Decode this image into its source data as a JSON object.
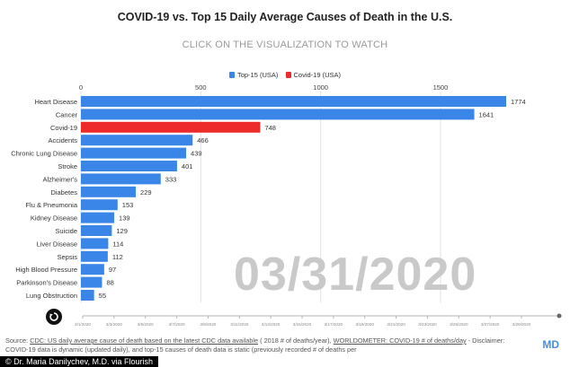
{
  "header": {
    "title": "COVID-19 vs. Top 15 Daily Average Causes of Death in the U.S.",
    "cta": "CLICK ON THE VISUALIZATION TO WATCH"
  },
  "current_date": "03/31/2020",
  "footer": {
    "source_label": "Source:",
    "source_link_1": "CDC: US daily average cause of death based on the latest CDC data available",
    "source_text_1": " ( 2018 # of deaths/year), ",
    "source_link_2": "WORLDOMETER: COVID-19 # of deaths/day",
    "source_text_2": " - Disclaimer: COVID-19 data is dynamic (updated daily), and top-15 causes of death data is static (previously recorded # of deaths per",
    "brand": "MD",
    "credit": "© Dr. Maria Danilychev, M.D. via Flourish"
  },
  "colors": {
    "top15": "#3a86e8",
    "covid": "#ee2b2b"
  },
  "icons": {
    "replay": "replay-icon"
  },
  "chart_data": {
    "type": "bar",
    "orientation": "horizontal",
    "legend": [
      {
        "name": "Top-15 (USA)",
        "color": "#3a86e8"
      },
      {
        "name": "Covid-19 (USA)",
        "color": "#ee2b2b"
      }
    ],
    "legend_position": "top-center",
    "categories": [
      "Heart Disease",
      "Cancer",
      "Covid-19",
      "Accidents",
      "Chronic Lung Disease",
      "Stroke",
      "Alzheimer's",
      "Diabetes",
      "Flu & Pneumonia",
      "Kidney Disease",
      "Suicide",
      "Liver Disease",
      "Sepsis",
      "High Blood Pressure",
      "Parkinson's Disease",
      "Lung Obstruction"
    ],
    "values": [
      1774,
      1641,
      748,
      466,
      439,
      401,
      333,
      229,
      153,
      139,
      129,
      114,
      112,
      97,
      88,
      55
    ],
    "series_membership": [
      "Top-15 (USA)",
      "Top-15 (USA)",
      "Covid-19 (USA)",
      "Top-15 (USA)",
      "Top-15 (USA)",
      "Top-15 (USA)",
      "Top-15 (USA)",
      "Top-15 (USA)",
      "Top-15 (USA)",
      "Top-15 (USA)",
      "Top-15 (USA)",
      "Top-15 (USA)",
      "Top-15 (USA)",
      "Top-15 (USA)",
      "Top-15 (USA)",
      "Top-15 (USA)"
    ],
    "x_ticks": [
      "0",
      "500",
      "1000",
      "1500"
    ],
    "xlim": [
      0,
      1800
    ],
    "timeline_ticks": [
      "3/1/2020",
      "3/3/2020",
      "3/5/2020",
      "3/7/2020",
      "3/9/2020",
      "3/11/2020",
      "3/13/2020",
      "3/15/2020",
      "3/17/2020",
      "3/19/2020",
      "3/21/2020",
      "3/23/2020",
      "3/25/2020",
      "3/27/2020",
      "3/29/2020"
    ],
    "grid": true
  }
}
